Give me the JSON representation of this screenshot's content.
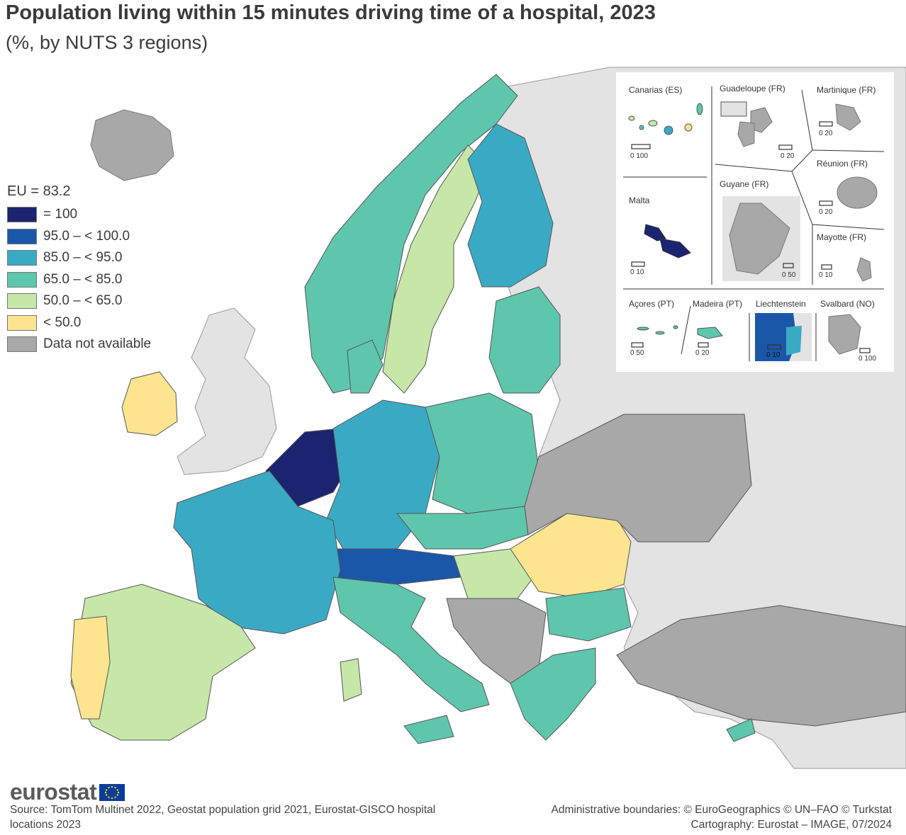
{
  "title": "Population living within 15 minutes driving time of a hospital, 2023",
  "subtitle": "(%, by NUTS 3 regions)",
  "legend": {
    "title": "EU = 83.2",
    "items": [
      {
        "label": "= 100",
        "color": "#1a2470"
      },
      {
        "label": "95.0 – < 100.0",
        "color": "#1a57a8"
      },
      {
        "label": "85.0 – < 95.0",
        "color": "#3aaac4"
      },
      {
        "label": "65.0 – < 85.0",
        "color": "#5ec6ad"
      },
      {
        "label": "50.0 – < 65.0",
        "color": "#c6e7a8"
      },
      {
        "label": "< 50.0",
        "color": "#fde58f"
      },
      {
        "label": "Data not available",
        "color": "#a8a8a8"
      }
    ]
  },
  "colors": {
    "non_eu_land": "#e3e3e3",
    "sea": "#ffffff",
    "border": "#333333"
  },
  "insets": {
    "canarias": {
      "label": "Canarias (ES)",
      "scale": "0   100"
    },
    "guadeloupe": {
      "label": "Guadeloupe (FR)",
      "scale": "0   20"
    },
    "martinique": {
      "label": "Martinique (FR)",
      "scale": "0   20"
    },
    "reunion": {
      "label": "Réunion (FR)",
      "scale": "0   20"
    },
    "malta": {
      "label": "Malta",
      "scale": "0   10"
    },
    "guyane": {
      "label": "Guyane (FR)",
      "scale": "0  50"
    },
    "mayotte": {
      "label": "Mayotte (FR)",
      "scale": "0   10"
    },
    "acores": {
      "label": "Açores (PT)",
      "scale": "0   50"
    },
    "madeira": {
      "label": "Madeira (PT)",
      "scale": "0   20"
    },
    "liechtenstein": {
      "label": "Liechtenstein",
      "scale": "0   10"
    },
    "svalbard": {
      "label": "Svalbard (NO)",
      "scale": "0 100"
    }
  },
  "footer": {
    "logo": "eurostat",
    "source": "Source: TomTom Multinet 2022, Geostat population grid 2021, Eurostat-GISCO hospital locations 2023",
    "credits_line1": "Administrative boundaries: © EuroGeographics © UN–FAO © Turkstat",
    "credits_line2": "Cartography: Eurostat – IMAGE, 07/2024"
  }
}
